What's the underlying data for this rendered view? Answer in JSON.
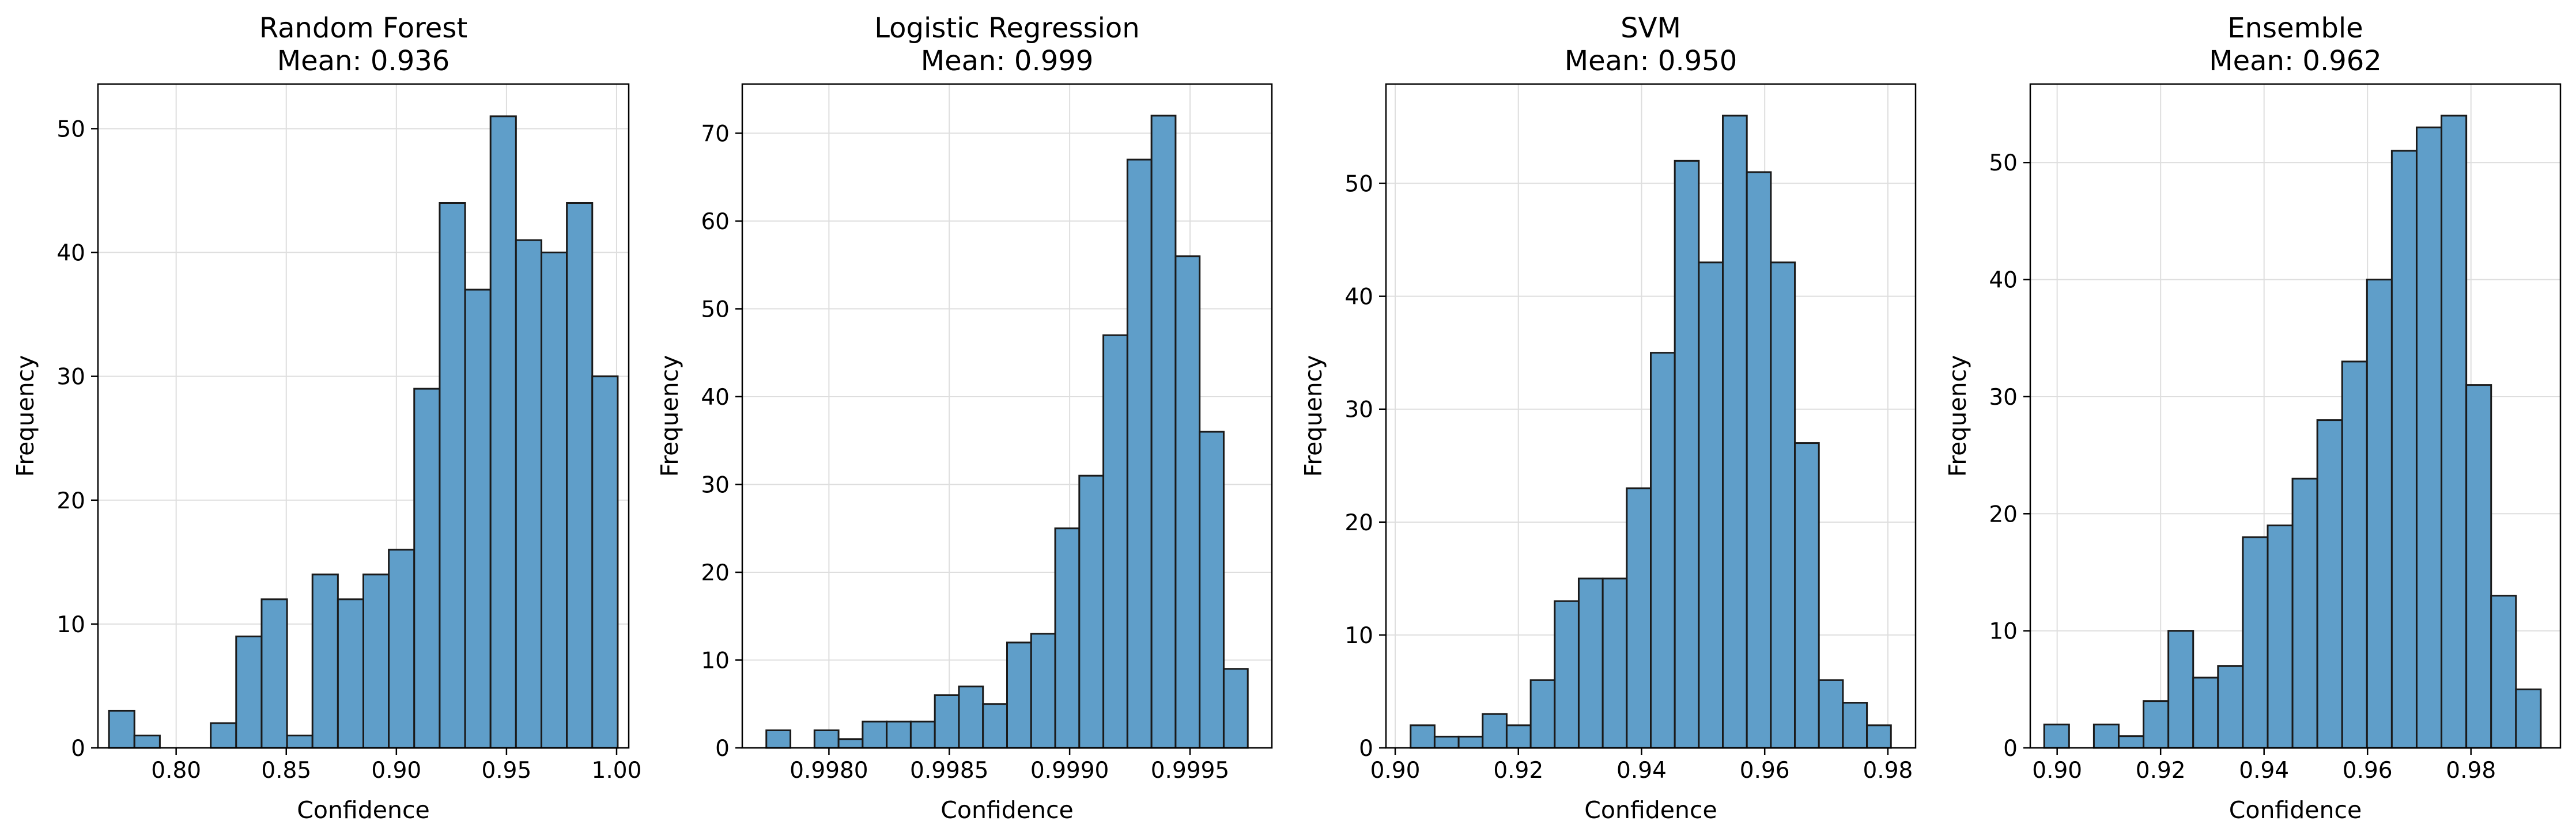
{
  "style": {
    "bar_color": "#5f9ec9",
    "edge_color": "#1a1a1a",
    "grid_color": "#dedede"
  },
  "chart_data": [
    {
      "type": "bar",
      "title": "Random Forest",
      "subtitle": "Mean: 0.936",
      "xlabel": "Confidence",
      "ylabel": "Frequency",
      "grid": true,
      "xlim": [
        0.7645,
        1.0055
      ],
      "ylim": [
        0,
        53.6
      ],
      "xticks": [
        0.8,
        0.85,
        0.9,
        0.95,
        1.0
      ],
      "xtick_labels": [
        "0.80",
        "0.85",
        "0.90",
        "0.95",
        "1.00"
      ],
      "yticks": [
        0,
        10,
        20,
        30,
        40,
        50
      ],
      "ytick_labels": [
        "0",
        "10",
        "20",
        "30",
        "40",
        "50"
      ],
      "bin_start": 0.7695,
      "bin_end": 1.0005,
      "values": [
        3,
        1,
        0,
        0,
        2,
        9,
        12,
        1,
        14,
        12,
        14,
        16,
        29,
        44,
        37,
        51,
        41,
        40,
        44,
        30
      ]
    },
    {
      "type": "bar",
      "title": "Logistic Regression",
      "subtitle": "Mean: 0.999",
      "xlabel": "Confidence",
      "ylabel": "Frequency",
      "grid": true,
      "xlim": [
        0.99764,
        0.99984
      ],
      "ylim": [
        0,
        75.6
      ],
      "xticks": [
        0.998,
        0.9985,
        0.999,
        0.9995
      ],
      "xtick_labels": [
        "0.9980",
        "0.9985",
        "0.9990",
        "0.9995"
      ],
      "yticks": [
        0,
        10,
        20,
        30,
        40,
        50,
        60,
        70
      ],
      "ytick_labels": [
        "0",
        "10",
        "20",
        "30",
        "40",
        "50",
        "60",
        "70"
      ],
      "bin_start": 0.99774,
      "bin_end": 0.99974,
      "values": [
        2,
        0,
        2,
        1,
        3,
        3,
        3,
        6,
        7,
        5,
        12,
        13,
        25,
        31,
        47,
        67,
        72,
        56,
        36,
        9
      ]
    },
    {
      "type": "bar",
      "title": "SVM",
      "subtitle": "Mean: 0.950",
      "xlabel": "Confidence",
      "ylabel": "Frequency",
      "grid": true,
      "xlim": [
        0.8985,
        0.9845
      ],
      "ylim": [
        0,
        58.8
      ],
      "xticks": [
        0.9,
        0.92,
        0.94,
        0.96,
        0.98
      ],
      "xtick_labels": [
        "0.90",
        "0.92",
        "0.94",
        "0.96",
        "0.98"
      ],
      "yticks": [
        0,
        10,
        20,
        30,
        40,
        50
      ],
      "ytick_labels": [
        "0",
        "10",
        "20",
        "30",
        "40",
        "50"
      ],
      "bin_start": 0.9025,
      "bin_end": 0.9805,
      "values": [
        2,
        1,
        1,
        3,
        2,
        6,
        13,
        15,
        15,
        23,
        35,
        52,
        43,
        56,
        51,
        43,
        27,
        6,
        4,
        2
      ]
    },
    {
      "type": "bar",
      "title": "Ensemble",
      "subtitle": "Mean: 0.962",
      "xlabel": "Confidence",
      "ylabel": "Frequency",
      "grid": true,
      "xlim": [
        0.8948,
        0.9973
      ],
      "ylim": [
        0,
        56.7
      ],
      "xticks": [
        0.9,
        0.92,
        0.94,
        0.96,
        0.98
      ],
      "xtick_labels": [
        "0.90",
        "0.92",
        "0.94",
        "0.96",
        "0.98"
      ],
      "yticks": [
        0,
        10,
        20,
        30,
        40,
        50
      ],
      "ytick_labels": [
        "0",
        "10",
        "20",
        "30",
        "40",
        "50"
      ],
      "bin_start": 0.8975,
      "bin_end": 0.9935,
      "values": [
        2,
        0,
        2,
        1,
        4,
        10,
        6,
        7,
        18,
        19,
        23,
        28,
        33,
        40,
        51,
        53,
        54,
        31,
        13,
        5
      ]
    }
  ]
}
